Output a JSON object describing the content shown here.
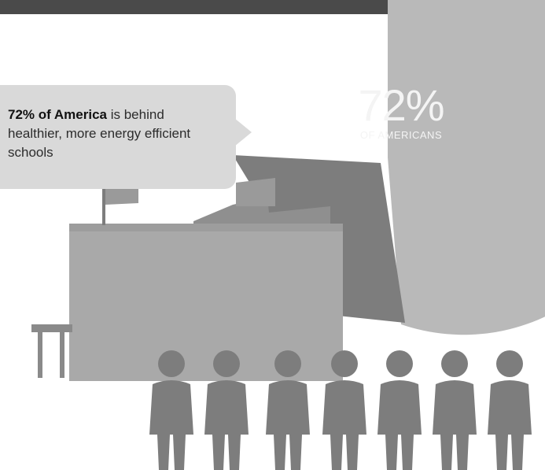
{
  "pie": {
    "percent_label": "72%",
    "sub_label": "OF AMERICANS",
    "share": 0.72
  },
  "callout": {
    "bold": "72% of America",
    "rest": "is behind healthier, more energy efficient schools"
  },
  "people_count": 7,
  "colors": {
    "pie_main": "#b9b9b9",
    "pie_small": "#7f7f7f",
    "school": "#a9a9a9",
    "school_dark": "#8a8a8a",
    "people": "#7d7d7d",
    "callout_bg": "#d9d9d9",
    "top_band": "#4a4a4a"
  },
  "icons": [
    "flag-icon",
    "person-icon",
    "school-icon"
  ]
}
